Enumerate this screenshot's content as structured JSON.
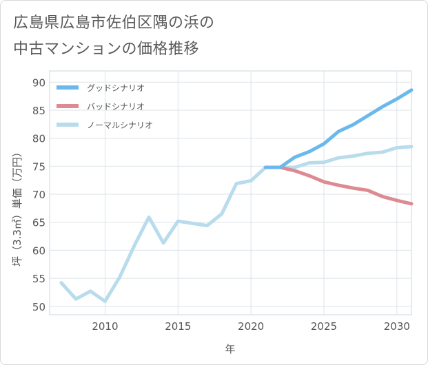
{
  "title_line1": "広島県広島市佐伯区隅の浜の",
  "title_line2": "中古マンションの価格推移",
  "chart_data": {
    "type": "line",
    "xlabel": "年",
    "ylabel": "坪（3.3㎡）単価（万円）",
    "xlim": [
      2006.2,
      2031
    ],
    "ylim": [
      48.5,
      92
    ],
    "xticks": [
      2010,
      2015,
      2020,
      2025,
      2030
    ],
    "yticks": [
      50,
      55,
      60,
      65,
      70,
      75,
      80,
      85,
      90
    ],
    "grid": true,
    "legend_position": "top-left",
    "series": [
      {
        "name": "グッドシナリオ",
        "color": "#6ab8ec",
        "x": [
          2021,
          2022,
          2023,
          2024,
          2025,
          2026,
          2027,
          2028,
          2029,
          2030,
          2031
        ],
        "y": [
          74.8,
          74.8,
          76.6,
          77.6,
          79.0,
          81.2,
          82.4,
          84.0,
          85.6,
          87.0,
          88.6
        ]
      },
      {
        "name": "バッドシナリオ",
        "color": "#de8a92",
        "x": [
          2021,
          2022,
          2023,
          2024,
          2025,
          2026,
          2027,
          2028,
          2029,
          2030,
          2031
        ],
        "y": [
          74.8,
          74.8,
          74.2,
          73.3,
          72.2,
          71.6,
          71.1,
          70.7,
          69.6,
          68.9,
          68.3
        ]
      },
      {
        "name": "ノーマルシナリオ",
        "color": "#b8dcec",
        "x": [
          2007,
          2008,
          2009,
          2010,
          2011,
          2012,
          2013,
          2014,
          2015,
          2016,
          2017,
          2018,
          2019,
          2020,
          2021,
          2022,
          2023,
          2024,
          2025,
          2026,
          2027,
          2028,
          2029,
          2030,
          2031
        ],
        "y": [
          54.2,
          51.3,
          52.7,
          50.9,
          55.2,
          60.8,
          65.9,
          61.3,
          65.2,
          64.8,
          64.4,
          66.5,
          71.9,
          72.4,
          74.8,
          74.8,
          74.8,
          75.6,
          75.7,
          76.5,
          76.8,
          77.3,
          77.5,
          78.3,
          78.5
        ]
      }
    ]
  }
}
